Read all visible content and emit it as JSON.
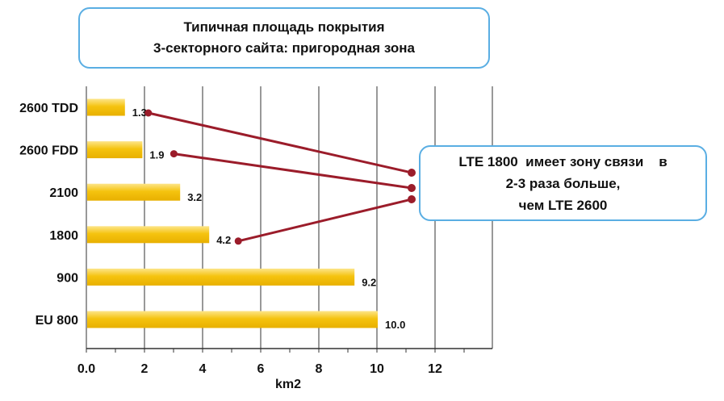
{
  "title": {
    "line1": "Типичная площадь покрытия",
    "line2": "3-секторного сайта: пригородная зона"
  },
  "callout": {
    "line1": "LTE 1800  имеет зону связи    в",
    "line2": "2-3 раза больше,",
    "line3": "чем LTE 2600"
  },
  "colors": {
    "bar": "#f5c30f",
    "grid": "#555555",
    "connector": "#9b1c2a",
    "box_border": "#5aaee3"
  },
  "chart_data": {
    "type": "bar",
    "orientation": "horizontal",
    "categories": [
      "2600 TDD",
      "2600 FDD",
      "2100",
      "1800",
      "900",
      "EU 800"
    ],
    "values": [
      1.3,
      1.9,
      3.2,
      4.2,
      9.2,
      10.0
    ],
    "value_labels": [
      "1.3",
      "1.9",
      "3.2",
      "4.2",
      "9.2",
      "10.0"
    ],
    "xlabel": "km2",
    "xlim": [
      0,
      14
    ],
    "xticks": [
      "0.0",
      "2",
      "4",
      "6",
      "8",
      "10",
      "12"
    ],
    "grid": true,
    "callout_links": [
      "2600 TDD",
      "2600 FDD",
      "1800"
    ]
  }
}
